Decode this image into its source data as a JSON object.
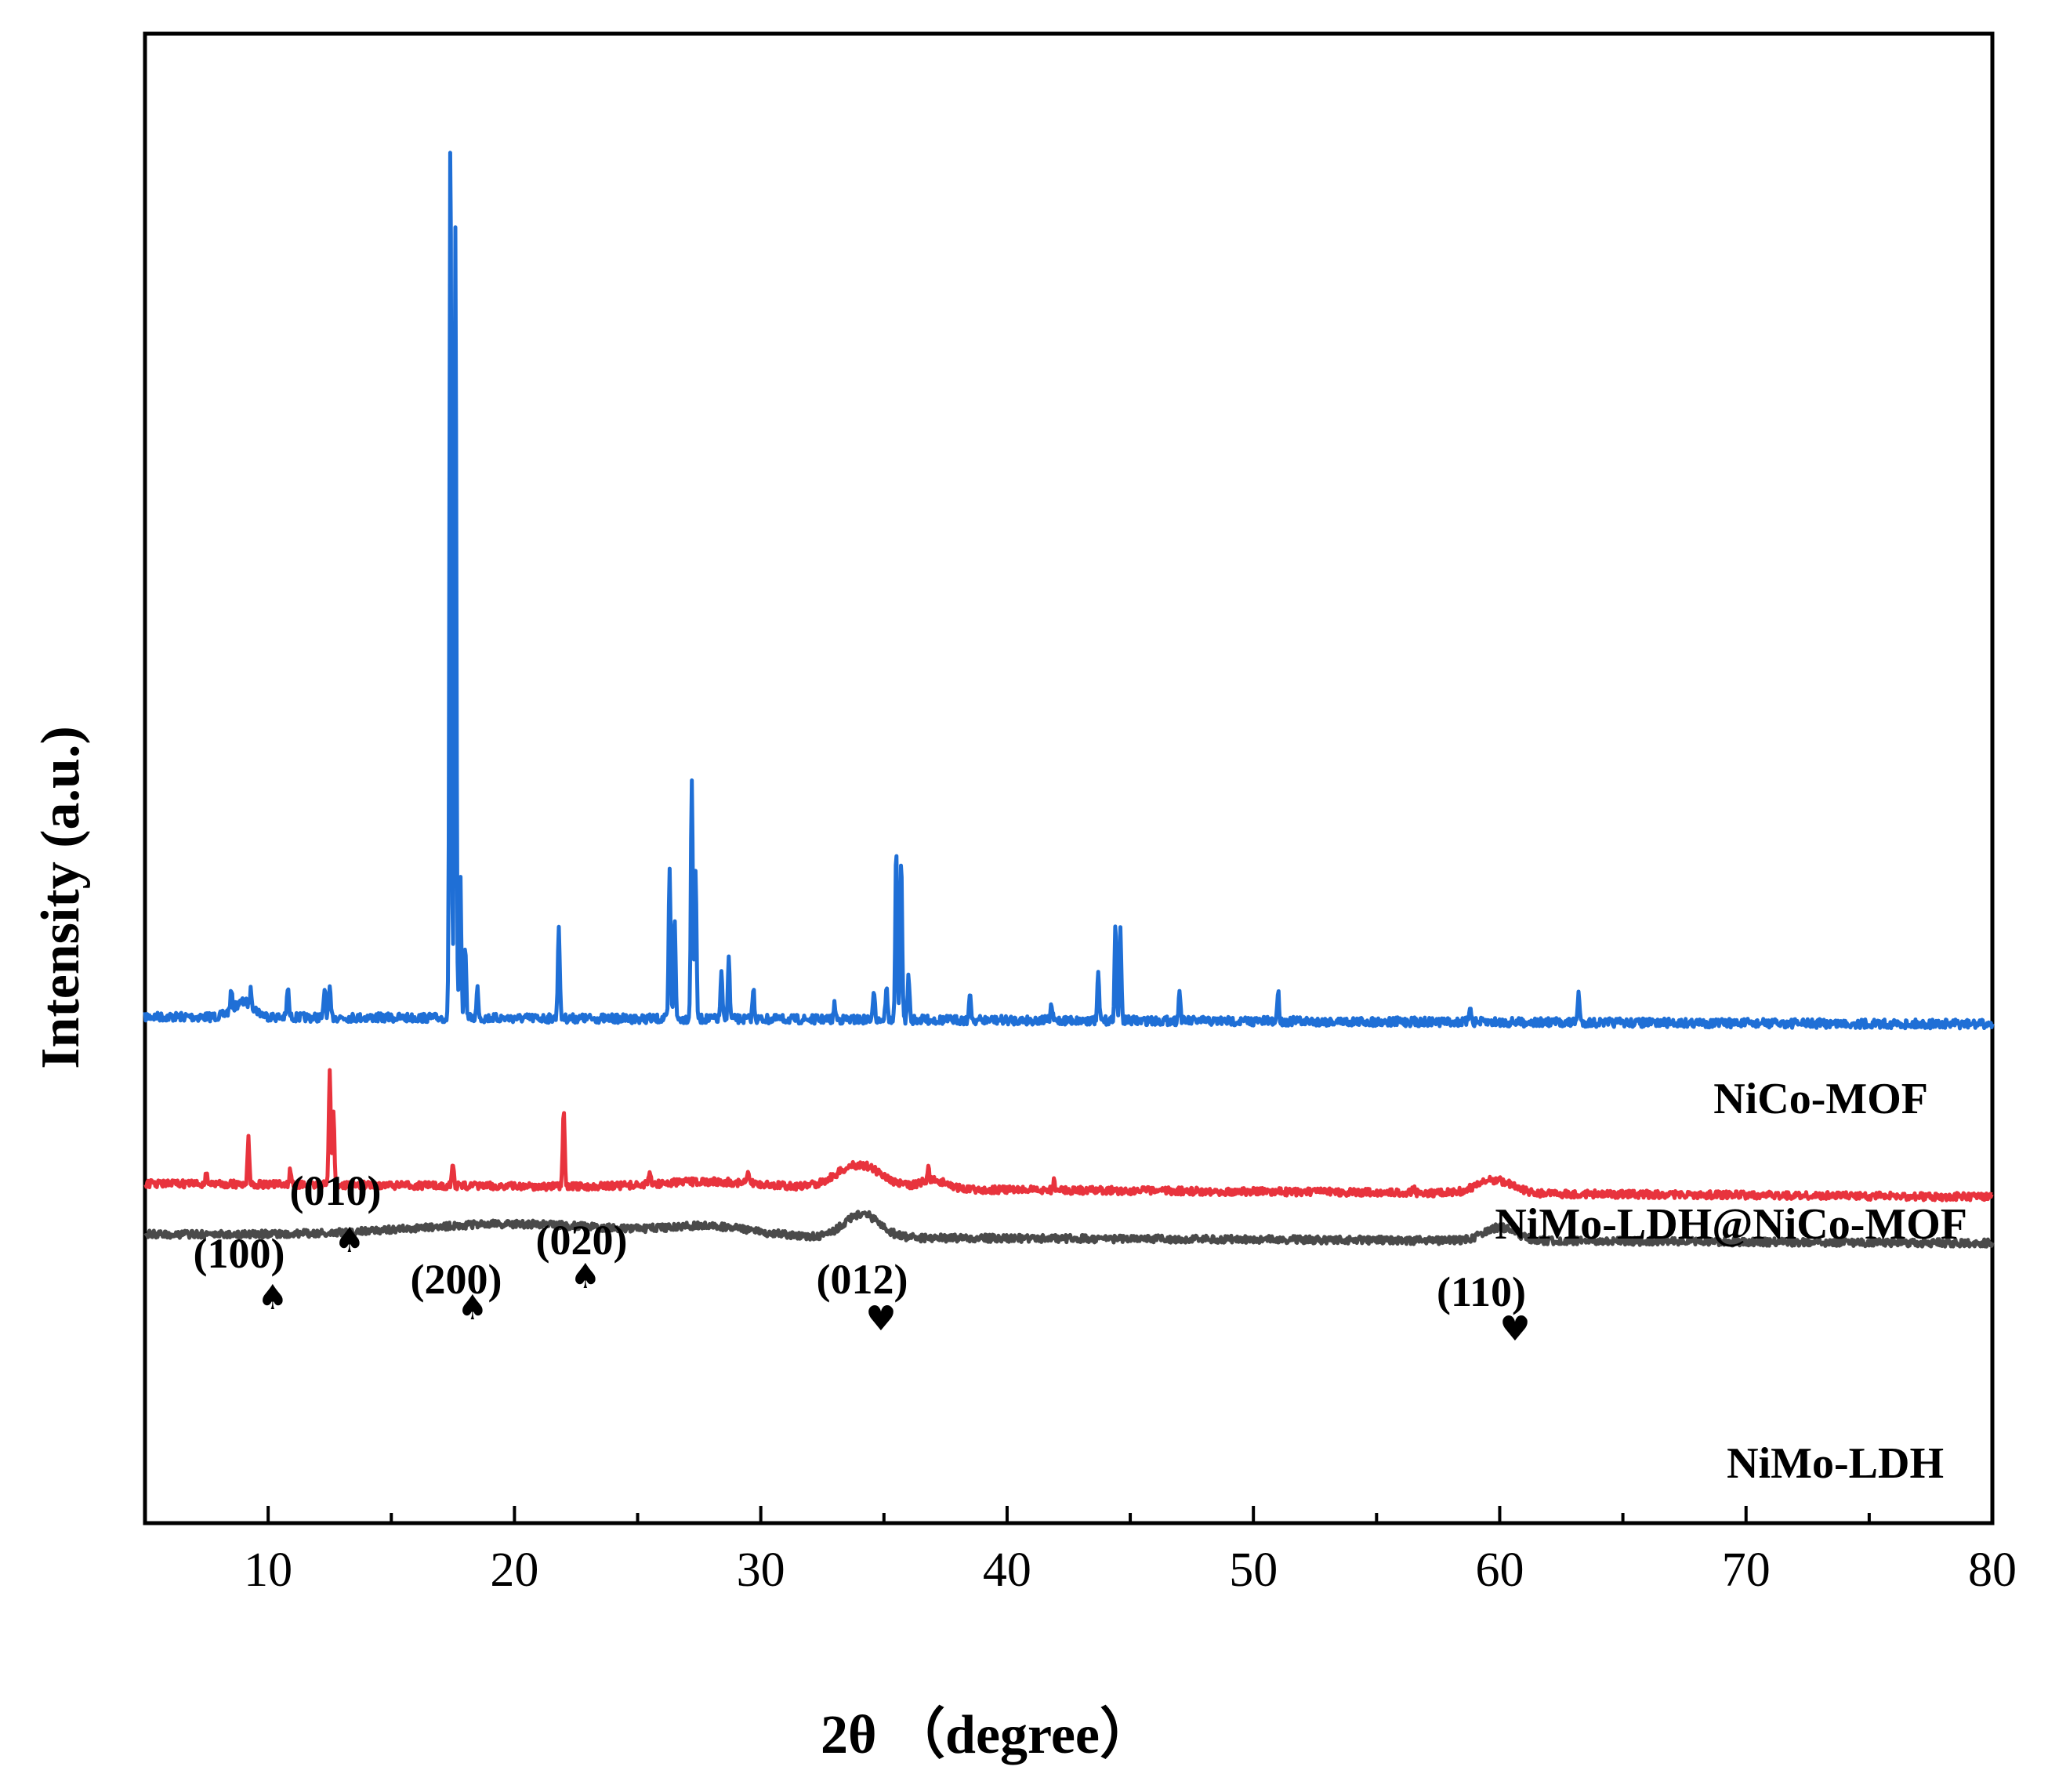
{
  "chart_data": {
    "type": "line",
    "title": "",
    "xlabel": "2θ （degree）",
    "ylabel": "Intensity (a.u.)",
    "xlim": [
      5,
      80
    ],
    "x_ticks": [
      10,
      20,
      30,
      40,
      50,
      60,
      70,
      80
    ],
    "y_ticks": [],
    "grid": false,
    "series": [
      {
        "name": "NiCo-MOF",
        "color": "#1f6fd6",
        "baseline": 0.66,
        "end_baseline": 0.665,
        "noise": 0.006,
        "humps": [
          [
            9,
            0.01,
            0.6
          ]
        ],
        "peaks": [
          [
            8.5,
            0.012
          ],
          [
            9.3,
            0.01
          ],
          [
            10.8,
            0.02
          ],
          [
            12.3,
            0.02
          ],
          [
            12.5,
            0.018
          ],
          [
            17.4,
            0.6
          ],
          [
            17.6,
            0.53
          ],
          [
            17.8,
            0.1
          ],
          [
            18.0,
            0.05
          ],
          [
            18.5,
            0.02
          ],
          [
            21.8,
            0.062
          ],
          [
            26.3,
            0.1
          ],
          [
            26.5,
            0.07
          ],
          [
            27.2,
            0.16
          ],
          [
            27.35,
            0.1
          ],
          [
            28.4,
            0.03
          ],
          [
            28.7,
            0.04
          ],
          [
            29.7,
            0.02
          ],
          [
            33.0,
            0.01
          ],
          [
            34.6,
            0.02
          ],
          [
            35.1,
            0.022
          ],
          [
            35.5,
            0.115
          ],
          [
            35.7,
            0.11
          ],
          [
            36.0,
            0.03
          ],
          [
            38.5,
            0.017
          ],
          [
            41.8,
            0.01
          ],
          [
            43.7,
            0.03
          ],
          [
            44.4,
            0.065
          ],
          [
            44.6,
            0.06
          ],
          [
            47.0,
            0.02
          ],
          [
            51.0,
            0.02
          ],
          [
            58.8,
            0.012
          ],
          [
            63.2,
            0.02
          ]
        ]
      },
      {
        "name": "NiMo-LDH@NiCo-MOF",
        "color": "#e8333d",
        "baseline": 0.772,
        "end_baseline": 0.781,
        "noise": 0.005,
        "humps": [
          [
            34,
            0.016,
            1.3
          ],
          [
            59.8,
            0.009,
            1.0
          ],
          [
            37,
            0.006,
            0.8
          ],
          [
            28,
            0.004,
            3.0
          ]
        ],
        "peaks": [
          [
            7.5,
            0.008
          ],
          [
            9.2,
            0.03
          ],
          [
            10.9,
            0.01
          ],
          [
            12.5,
            0.078
          ],
          [
            12.65,
            0.05
          ],
          [
            17.5,
            0.015
          ],
          [
            22.0,
            0.05
          ],
          [
            25.5,
            0.008
          ],
          [
            29.5,
            0.007
          ],
          [
            36.8,
            0.008
          ],
          [
            41.9,
            0.006
          ],
          [
            56.5,
            0.005
          ]
        ]
      },
      {
        "name": "NiMo-LDH",
        "color": "#4a4a4a",
        "baseline": 0.806,
        "end_baseline": 0.812,
        "noise": 0.005,
        "humps": [
          [
            34.1,
            0.016,
            1.0
          ],
          [
            60.0,
            0.009,
            0.9
          ],
          [
            20,
            0.008,
            6.0
          ],
          [
            28,
            0.006,
            2.5
          ]
        ],
        "peaks": []
      }
    ],
    "series_labels": [
      "NiCo-MOF",
      "NiMo-LDH@NiCo-MOF",
      "NiMo-LDH"
    ],
    "annotations": [
      {
        "text": "(100)",
        "x": 9.2
      },
      {
        "text": "(010)",
        "x": 12.5
      },
      {
        "text": "(200)",
        "x": 17.5
      },
      {
        "text": "(020)",
        "x": 22.0
      },
      {
        "text": "(012)",
        "x": 34.0
      },
      {
        "text": "(110)",
        "x": 59.8
      }
    ],
    "markers": [
      {
        "symbol": "♠",
        "x": 10.2
      },
      {
        "symbol": "♠",
        "x": 13.3
      },
      {
        "symbol": "♠",
        "x": 18.3
      },
      {
        "symbol": "♠",
        "x": 22.9
      },
      {
        "symbol": "♥",
        "x": 35.0
      },
      {
        "symbol": "♥",
        "x": 60.8
      }
    ]
  }
}
